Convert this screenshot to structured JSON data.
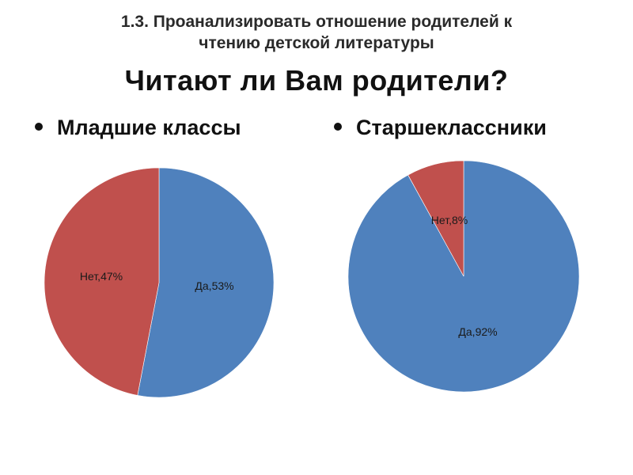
{
  "header": {
    "line1": "1.3. Проанализировать отношение родителей к",
    "line2": "чтению детской литературы"
  },
  "subtitle": "Читают ли Вам родители?",
  "groups": {
    "left": "Младшие классы",
    "right": "Старшеклассники"
  },
  "colors": {
    "yes": "#4F81BD",
    "no": "#C0504D"
  },
  "chart_data": [
    {
      "type": "pie",
      "title": "Младшие классы",
      "categories": [
        "Да",
        "Нет"
      ],
      "values": [
        53,
        47
      ],
      "data_labels": [
        "Да,53%",
        "Нет,47%"
      ]
    },
    {
      "type": "pie",
      "title": "Старшеклассники",
      "categories": [
        "Да",
        "Нет"
      ],
      "values": [
        92,
        8
      ],
      "data_labels": [
        "Да,92%",
        "Нет,8%"
      ]
    }
  ]
}
